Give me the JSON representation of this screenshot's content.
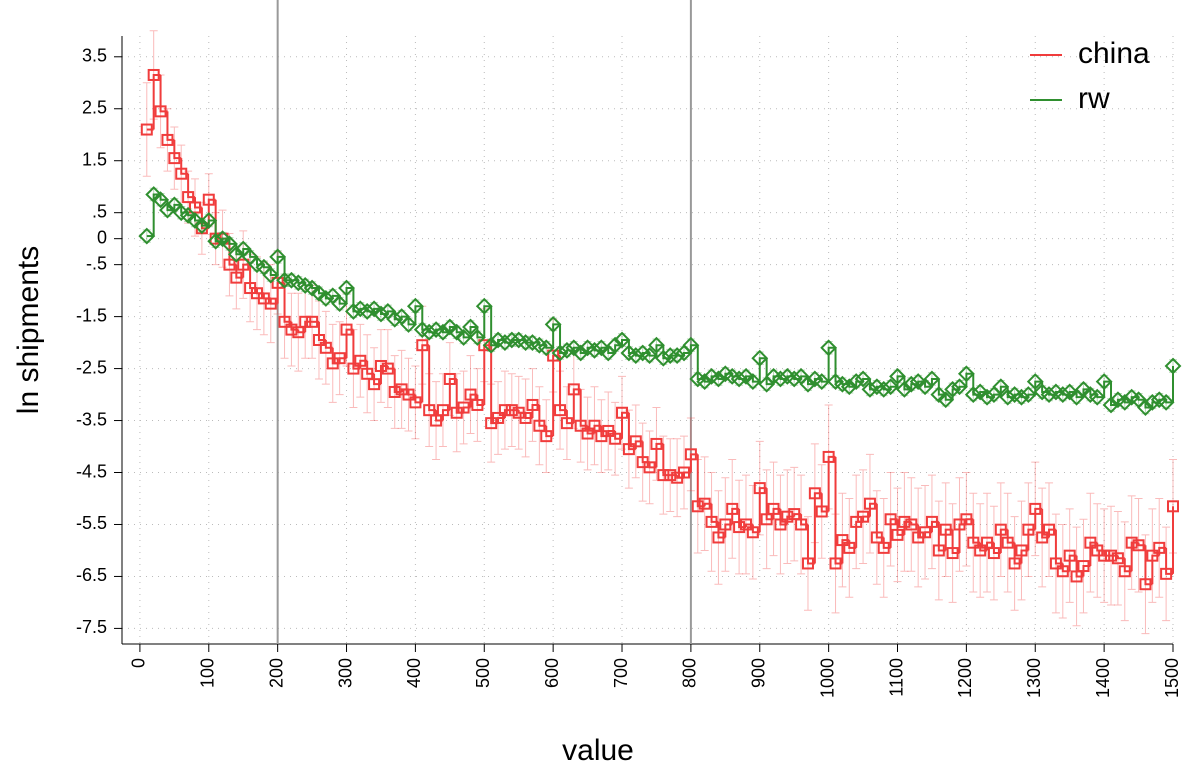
{
  "chart_data": {
    "type": "step-scatter",
    "xlabel": "value",
    "ylabel": "ln shipments",
    "xlim": [
      -26,
      1500
    ],
    "ylim": [
      -7.8,
      3.9
    ],
    "xticks": [
      0,
      100,
      200,
      300,
      400,
      500,
      600,
      700,
      800,
      900,
      1000,
      1100,
      1200,
      1300,
      1400,
      1500
    ],
    "yticks": [
      3.5,
      2.5,
      1.5,
      {
        "value": 0.5,
        "label": ".5"
      },
      0,
      {
        "value": -0.5,
        "label": "-.5"
      },
      -1.5,
      -2.5,
      -3.5,
      -4.5,
      -5.5,
      -6.5,
      -7.5
    ],
    "grid": true,
    "vlines": [
      200,
      800
    ],
    "legend": "top-right",
    "x": [
      10,
      20,
      30,
      40,
      50,
      60,
      70,
      80,
      90,
      100,
      110,
      120,
      130,
      140,
      150,
      160,
      170,
      180,
      190,
      200,
      210,
      220,
      230,
      240,
      250,
      260,
      270,
      280,
      290,
      300,
      310,
      320,
      330,
      340,
      350,
      360,
      370,
      380,
      390,
      400,
      410,
      420,
      430,
      440,
      450,
      460,
      470,
      480,
      490,
      500,
      510,
      520,
      530,
      540,
      550,
      560,
      570,
      580,
      590,
      600,
      610,
      620,
      630,
      640,
      650,
      660,
      670,
      680,
      690,
      700,
      710,
      720,
      730,
      740,
      750,
      760,
      770,
      780,
      790,
      800,
      810,
      820,
      830,
      840,
      850,
      860,
      870,
      880,
      890,
      900,
      910,
      920,
      930,
      940,
      950,
      960,
      970,
      980,
      990,
      1000,
      1010,
      1020,
      1030,
      1040,
      1050,
      1060,
      1070,
      1080,
      1090,
      1100,
      1110,
      1120,
      1130,
      1140,
      1150,
      1160,
      1170,
      1180,
      1190,
      1200,
      1210,
      1220,
      1230,
      1240,
      1250,
      1260,
      1270,
      1280,
      1290,
      1300,
      1310,
      1320,
      1330,
      1340,
      1350,
      1360,
      1370,
      1380,
      1390,
      1400,
      1410,
      1420,
      1430,
      1440,
      1450,
      1460,
      1470,
      1480,
      1490,
      1500
    ],
    "series": [
      {
        "name": "china",
        "color": "#f03c3c",
        "marker": "square",
        "values": [
          2.1,
          3.15,
          2.45,
          1.9,
          1.55,
          1.25,
          0.8,
          0.6,
          0.2,
          0.75,
          0.0,
          0.0,
          -0.5,
          -0.75,
          -0.5,
          -0.95,
          -1.05,
          -1.15,
          -1.25,
          -0.85,
          -1.6,
          -1.75,
          -1.8,
          -1.6,
          -1.6,
          -1.95,
          -2.1,
          -2.4,
          -2.3,
          -1.75,
          -2.5,
          -2.35,
          -2.6,
          -2.8,
          -2.45,
          -2.5,
          -2.95,
          -2.9,
          -3.0,
          -3.15,
          -2.05,
          -3.3,
          -3.5,
          -3.3,
          -2.7,
          -3.35,
          -3.25,
          -3.0,
          -3.2,
          -2.05,
          -3.55,
          -3.45,
          -3.3,
          -3.3,
          -3.35,
          -3.45,
          -3.2,
          -3.6,
          -3.8,
          -2.25,
          -3.3,
          -3.55,
          -2.9,
          -3.6,
          -3.75,
          -3.6,
          -3.8,
          -3.7,
          -3.85,
          -3.35,
          -4.05,
          -3.9,
          -4.3,
          -4.4,
          -3.95,
          -4.55,
          -4.55,
          -4.6,
          -4.5,
          -4.15,
          -5.15,
          -5.1,
          -5.45,
          -5.75,
          -5.5,
          -5.2,
          -5.55,
          -5.5,
          -5.65,
          -4.8,
          -5.4,
          -5.2,
          -5.5,
          -5.35,
          -5.3,
          -5.5,
          -6.25,
          -4.9,
          -5.25,
          -4.2,
          -6.25,
          -5.8,
          -5.95,
          -5.45,
          -5.35,
          -5.1,
          -5.75,
          -5.95,
          -5.4,
          -5.7,
          -5.45,
          -5.5,
          -5.75,
          -5.65,
          -5.45,
          -6.0,
          -5.6,
          -6.05,
          -5.5,
          -5.4,
          -5.85,
          -6.0,
          -5.85,
          -6.05,
          -5.6,
          -5.85,
          -6.25,
          -6.0,
          -5.6,
          -5.2,
          -5.75,
          -5.6,
          -6.25,
          -6.4,
          -6.1,
          -6.5,
          -6.3,
          -5.85,
          -6.0,
          -6.1,
          -6.1,
          -6.15,
          -6.4,
          -5.85,
          -5.9,
          -6.65,
          -6.1,
          -5.95,
          -6.45,
          -5.15
        ],
        "errors": [
          0.9,
          0.85,
          0.7,
          0.6,
          0.6,
          0.55,
          0.5,
          0.55,
          0.5,
          0.5,
          0.5,
          0.55,
          0.6,
          0.6,
          0.65,
          0.65,
          0.7,
          0.7,
          0.75,
          0.6,
          0.7,
          0.7,
          0.75,
          0.7,
          0.7,
          0.75,
          0.7,
          0.75,
          0.7,
          0.7,
          0.75,
          0.7,
          0.75,
          0.7,
          0.7,
          0.75,
          0.7,
          0.75,
          0.7,
          0.7,
          0.75,
          0.7,
          0.75,
          0.7,
          0.7,
          0.75,
          0.7,
          0.75,
          0.7,
          0.7,
          0.75,
          0.7,
          0.75,
          0.7,
          0.7,
          0.75,
          0.7,
          0.75,
          0.7,
          0.7,
          0.75,
          0.7,
          0.75,
          0.7,
          0.7,
          0.75,
          0.7,
          0.75,
          0.7,
          0.7,
          0.75,
          0.7,
          0.75,
          0.7,
          0.7,
          0.75,
          0.7,
          0.75,
          0.7,
          0.7,
          0.9,
          0.9,
          0.95,
          0.9,
          0.9,
          0.95,
          0.9,
          0.95,
          0.9,
          0.9,
          0.95,
          0.9,
          0.95,
          0.9,
          0.9,
          0.95,
          0.9,
          0.95,
          0.9,
          1.0,
          0.95,
          0.9,
          0.95,
          0.9,
          0.9,
          0.95,
          0.9,
          0.95,
          0.9,
          0.9,
          0.95,
          0.9,
          0.95,
          0.9,
          0.9,
          0.95,
          0.9,
          0.95,
          0.9,
          0.9,
          0.95,
          0.9,
          0.95,
          0.9,
          0.9,
          0.95,
          0.9,
          0.95,
          0.9,
          0.9,
          0.95,
          0.9,
          0.95,
          0.9,
          0.9,
          0.95,
          0.9,
          0.95,
          0.9,
          0.9,
          0.95,
          0.9,
          0.95,
          0.9,
          0.9,
          0.95,
          0.9,
          0.95,
          0.9,
          0.9
        ]
      },
      {
        "name": "rw",
        "color": "#2f8f2f",
        "marker": "diamond",
        "error": 0.12,
        "values": [
          0.05,
          0.85,
          0.75,
          0.55,
          0.65,
          0.5,
          0.45,
          0.35,
          0.25,
          0.35,
          -0.05,
          0.0,
          -0.1,
          -0.3,
          -0.2,
          -0.35,
          -0.5,
          -0.55,
          -0.7,
          -0.35,
          -0.8,
          -0.8,
          -0.85,
          -0.9,
          -0.95,
          -1.05,
          -1.15,
          -1.1,
          -1.25,
          -0.95,
          -1.4,
          -1.35,
          -1.4,
          -1.35,
          -1.45,
          -1.4,
          -1.55,
          -1.5,
          -1.65,
          -1.3,
          -1.75,
          -1.8,
          -1.75,
          -1.8,
          -1.7,
          -1.8,
          -1.9,
          -1.7,
          -1.9,
          -1.3,
          -2.05,
          -1.95,
          -2.0,
          -1.95,
          -1.95,
          -2.0,
          -2.0,
          -2.05,
          -2.1,
          -1.65,
          -2.2,
          -2.15,
          -2.1,
          -2.2,
          -2.1,
          -2.15,
          -2.1,
          -2.2,
          -2.05,
          -1.95,
          -2.2,
          -2.25,
          -2.2,
          -2.25,
          -2.05,
          -2.3,
          -2.25,
          -2.25,
          -2.2,
          -2.05,
          -2.7,
          -2.75,
          -2.65,
          -2.7,
          -2.6,
          -2.65,
          -2.7,
          -2.65,
          -2.75,
          -2.3,
          -2.8,
          -2.65,
          -2.7,
          -2.65,
          -2.7,
          -2.65,
          -2.8,
          -2.7,
          -2.75,
          -2.1,
          -2.75,
          -2.8,
          -2.85,
          -2.75,
          -2.7,
          -2.9,
          -2.85,
          -2.9,
          -2.85,
          -2.65,
          -2.9,
          -2.8,
          -2.75,
          -2.85,
          -2.7,
          -3.0,
          -3.1,
          -2.9,
          -2.85,
          -2.6,
          -3.0,
          -2.95,
          -3.05,
          -3.0,
          -2.85,
          -3.05,
          -3.0,
          -3.05,
          -3.0,
          -2.75,
          -2.95,
          -3.0,
          -2.95,
          -3.0,
          -2.95,
          -3.05,
          -2.9,
          -3.0,
          -3.05,
          -2.75,
          -3.2,
          -3.1,
          -3.15,
          -3.05,
          -3.1,
          -3.25,
          -3.15,
          -3.1,
          -3.15,
          -2.45
        ]
      }
    ]
  }
}
